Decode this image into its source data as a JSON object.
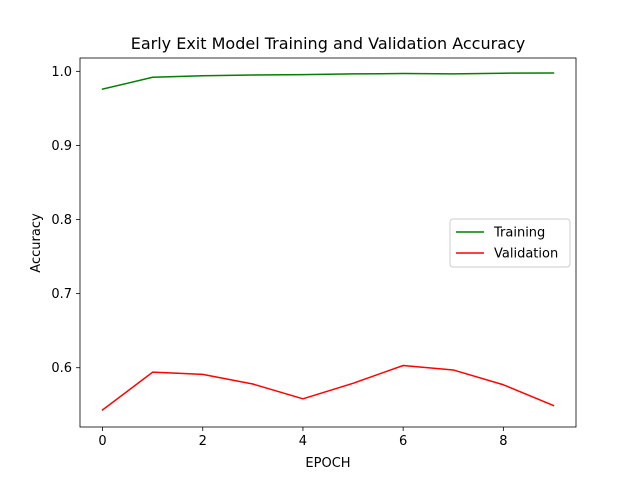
{
  "chart_data": {
    "type": "line",
    "title": "Early Exit Model Training and Validation Accuracy",
    "xlabel": "EPOCH",
    "ylabel": "Accuracy",
    "x": [
      0,
      1,
      2,
      3,
      4,
      5,
      6,
      7,
      8,
      9
    ],
    "xlim": [
      -0.45,
      9.45
    ],
    "ylim": [
      0.52,
      1.018
    ],
    "xticks": [
      0,
      2,
      4,
      6,
      8
    ],
    "yticks": [
      0.6,
      0.7,
      0.8,
      0.9,
      1.0
    ],
    "xtick_labels": [
      "0",
      "2",
      "4",
      "6",
      "8"
    ],
    "ytick_labels": [
      "0.6",
      "0.7",
      "0.8",
      "0.9",
      "1.0"
    ],
    "grid": false,
    "legend_position": "center-right",
    "series": [
      {
        "name": "Training",
        "color": "#008000",
        "values": [
          0.976,
          0.992,
          0.994,
          0.995,
          0.9955,
          0.9965,
          0.997,
          0.9965,
          0.9975,
          0.9978
        ]
      },
      {
        "name": "Validation",
        "color": "#ff0000",
        "values": [
          0.543,
          0.594,
          0.591,
          0.578,
          0.558,
          0.579,
          0.603,
          0.597,
          0.577,
          0.549
        ]
      }
    ]
  }
}
